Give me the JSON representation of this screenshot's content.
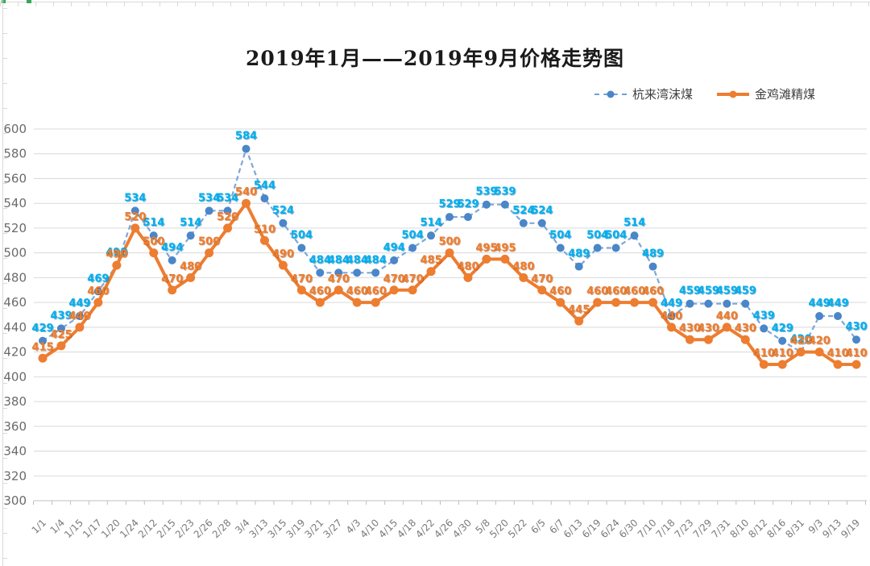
{
  "title": "2019年1月——2019年9月价格走势图",
  "colors": {
    "blue_line": "#7da7d8",
    "blue_marker": "#4a86c8",
    "blue_label": "#00b0f0",
    "blue_label_shadow": "#0b6aa0",
    "orange_line": "#ed7d31",
    "orange_marker": "#ed7d31",
    "orange_label": "#ed7d31",
    "orange_label_shadow": "#9c4a08",
    "gridline": "#d9d9d9",
    "axis_line": "#bfbfbf",
    "axis_text": "#6b6b6b",
    "sheet_grid": "#d9d9d9",
    "selection_green": "#34a853"
  },
  "chart_data": {
    "type": "line",
    "title": "2019年1月——2019年9月价格走势图",
    "xlabel": "",
    "ylabel": "",
    "ylim": [
      300,
      600
    ],
    "y_tick_step": 20,
    "grid": "horizontal",
    "legend_position": "top-right",
    "data_labels": true,
    "categories": [
      "1/1",
      "1/4",
      "1/15",
      "1/17",
      "1/20",
      "1/24",
      "2/12",
      "2/15",
      "2/23",
      "2/26",
      "2/28",
      "3/4",
      "3/13",
      "3/15",
      "3/19",
      "3/21",
      "3/27",
      "4/3",
      "4/10",
      "4/15",
      "4/18",
      "4/22",
      "4/26",
      "4/30",
      "5/8",
      "5/20",
      "5/22",
      "6/5",
      "6/7",
      "6/13",
      "6/19",
      "6/24",
      "6/30",
      "7/10",
      "7/18",
      "7/23",
      "7/29",
      "7/31",
      "8/10",
      "8/12",
      "8/16",
      "8/31",
      "9/3",
      "9/13",
      "9/19"
    ],
    "series": [
      {
        "name": "杭来湾沫煤",
        "style": "dashed",
        "values": [
          429,
          439,
          449,
          469,
          490,
          534,
          514,
          494,
          514,
          534,
          534,
          584,
          544,
          524,
          504,
          484,
          484,
          484,
          484,
          494,
          504,
          514,
          529,
          529,
          539,
          539,
          524,
          524,
          504,
          489,
          504,
          504,
          514,
          489,
          449,
          459,
          459,
          459,
          459,
          439,
          429,
          420,
          449,
          449,
          430
        ]
      },
      {
        "name": "金鸡滩精煤",
        "style": "solid",
        "values": [
          415,
          425,
          440,
          460,
          490,
          520,
          500,
          470,
          480,
          500,
          520,
          540,
          510,
          490,
          470,
          460,
          470,
          460,
          460,
          470,
          470,
          485,
          500,
          480,
          495,
          495,
          480,
          470,
          460,
          445,
          460,
          460,
          460,
          460,
          440,
          430,
          430,
          440,
          430,
          410,
          410,
          420,
          420,
          410,
          410
        ]
      }
    ]
  }
}
